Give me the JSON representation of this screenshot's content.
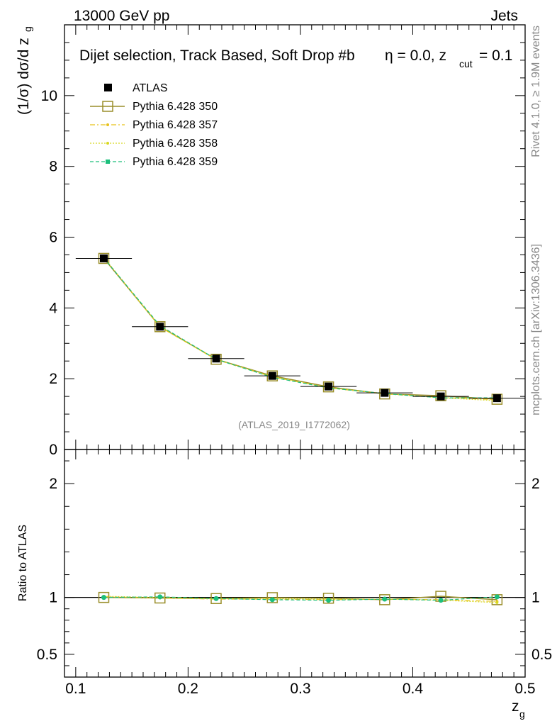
{
  "header": {
    "left": "13000 GeV pp",
    "right": "Jets",
    "side_top": "Rivet 4.1.0, ≥ 1.9M events",
    "side_bottom": "mcplots.cern.ch [arXiv:1306.3436]"
  },
  "colors": {
    "atlas": "#000000",
    "p350": "#9a8e2a",
    "p357": "#e8c21a",
    "p358": "#d8d820",
    "p359": "#1dbf7c"
  },
  "chart_data": [
    {
      "type": "line",
      "panel": "main",
      "title_main": "Dijet selection, Track Based, Soft Drop #b",
      "title_eta": "η = 0.0, z",
      "title_cut": "cut",
      "title_val": " = 0.1",
      "ylabel_main": "(1/σ) dσ/d z",
      "ylabel_sub": "g",
      "watermark": "(ATLAS_2019_I1772062)",
      "x": [
        0.125,
        0.175,
        0.225,
        0.275,
        0.325,
        0.375,
        0.425,
        0.475
      ],
      "xlim": [
        0.09,
        0.5
      ],
      "ylim": [
        0,
        12
      ],
      "yticks": [
        0,
        2,
        4,
        6,
        8,
        10
      ],
      "ytick_labels": [
        "0",
        "2",
        "4",
        "6",
        "8",
        "10"
      ],
      "legend_position": "top-left",
      "series": [
        {
          "name": "ATLAS",
          "style": "data",
          "values": [
            5.4,
            3.47,
            2.57,
            2.08,
            1.78,
            1.6,
            1.5,
            1.45
          ]
        },
        {
          "name": "Pythia 6.428 350",
          "style": "solid",
          "values": [
            5.4,
            3.47,
            2.55,
            2.08,
            1.77,
            1.57,
            1.52,
            1.42
          ]
        },
        {
          "name": "Pythia 6.428 357",
          "style": "dashdot",
          "values": [
            5.42,
            3.46,
            2.54,
            2.05,
            1.74,
            1.57,
            1.47,
            1.41
          ]
        },
        {
          "name": "Pythia 6.428 358",
          "style": "dotted",
          "values": [
            5.43,
            3.47,
            2.55,
            2.06,
            1.75,
            1.58,
            1.46,
            1.38
          ]
        },
        {
          "name": "Pythia 6.428 359",
          "style": "dashed",
          "values": [
            5.41,
            3.5,
            2.55,
            2.04,
            1.74,
            1.58,
            1.46,
            1.46
          ]
        }
      ]
    },
    {
      "type": "line",
      "panel": "ratio",
      "ylabel": "Ratio to ATLAS",
      "xlabel_main": "z",
      "xlabel_sub": "g",
      "x": [
        0.125,
        0.175,
        0.225,
        0.275,
        0.325,
        0.375,
        0.425,
        0.475
      ],
      "xticks": [
        0.1,
        0.2,
        0.3,
        0.4,
        0.5
      ],
      "xtick_labels": [
        "0.1",
        "0.2",
        "0.3",
        "0.4",
        "0.5"
      ],
      "yticks": [
        0.5,
        1,
        2
      ],
      "ytick_labels": [
        "0.5",
        "1",
        "2"
      ],
      "ylim": [
        0.3,
        2.3
      ],
      "series": [
        {
          "name": "Pythia 6.428 350",
          "style": "solid",
          "values": [
            1.0,
            0.995,
            0.99,
            0.998,
            0.993,
            0.98,
            1.01,
            0.98
          ]
        },
        {
          "name": "Pythia 6.428 357",
          "style": "dashdot",
          "values": [
            1.005,
            0.995,
            0.985,
            0.985,
            0.98,
            0.985,
            0.98,
            0.965
          ]
        },
        {
          "name": "Pythia 6.428 358",
          "style": "dotted",
          "values": [
            1.01,
            1.0,
            0.99,
            0.99,
            0.985,
            0.985,
            0.975,
            0.955
          ]
        },
        {
          "name": "Pythia 6.428 359",
          "style": "dashed",
          "values": [
            1.0,
            1.005,
            0.99,
            0.98,
            0.975,
            0.985,
            0.975,
            1.005
          ]
        }
      ]
    }
  ]
}
